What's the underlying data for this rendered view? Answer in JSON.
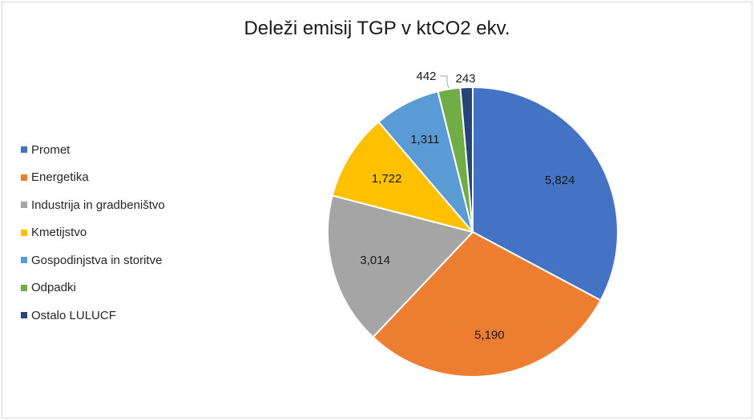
{
  "chart_data": {
    "type": "pie",
    "title": "Deleži emisij TGP v ktCO2 ekv.",
    "legend_position": "left",
    "slices": [
      {
        "label": "Promet",
        "value": 5824,
        "display": "5,824",
        "color": "#4472C4"
      },
      {
        "label": "Energetika",
        "value": 5190,
        "display": "5,190",
        "color": "#ED7D31"
      },
      {
        "label": "Industrija in gradbeništvo",
        "value": 3014,
        "display": "3,014",
        "color": "#A5A5A5"
      },
      {
        "label": "Kmetijstvo",
        "value": 1722,
        "display": "1,722",
        "color": "#FFC000"
      },
      {
        "label": "Gospodinjstva in storitve",
        "value": 1311,
        "display": "1,311",
        "color": "#5B9BD5"
      },
      {
        "label": "Odpadki",
        "value": 442,
        "display": "442",
        "color": "#70AD47"
      },
      {
        "label": "Ostalo LULUCF",
        "value": 243,
        "display": "243",
        "color": "#264478"
      }
    ]
  }
}
